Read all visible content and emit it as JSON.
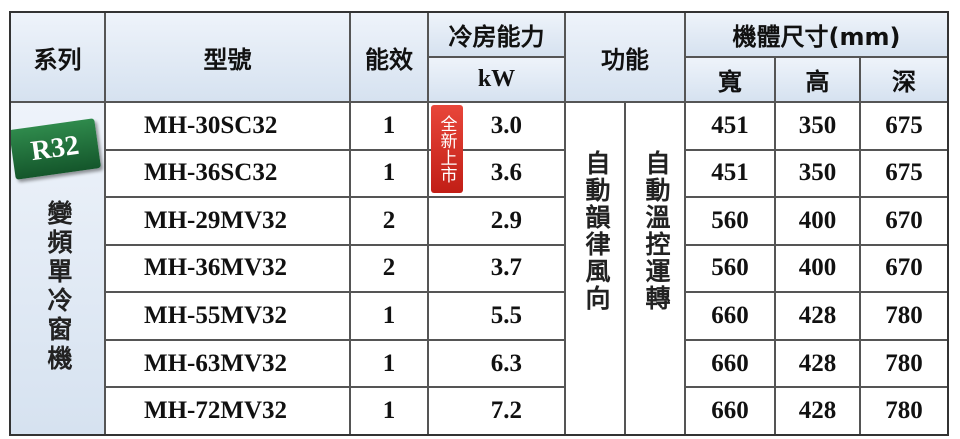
{
  "header": {
    "series": "系列",
    "model": "型號",
    "efficiency": "能效",
    "cooling": "冷房能力",
    "cooling_unit": "kW",
    "function": "功能",
    "size": "機體尺寸(mm)",
    "width": "寬",
    "height": "高",
    "depth": "深"
  },
  "series_cell": {
    "badge": "R32",
    "name": "變頻單冷窗機"
  },
  "new_badge": "全新上市",
  "functions": [
    "自動韻律風向",
    "自動溫控運轉"
  ],
  "table": {
    "rows": [
      [
        "MH-30SC32",
        "1",
        "3.0",
        "451",
        "350",
        "675"
      ],
      [
        "MH-36SC32",
        "1",
        "3.6",
        "451",
        "350",
        "675"
      ],
      [
        "MH-29MV32",
        "2",
        "2.9",
        "560",
        "400",
        "670"
      ],
      [
        "MH-36MV32",
        "2",
        "3.7",
        "560",
        "400",
        "670"
      ],
      [
        "MH-55MV32",
        "1",
        "5.5",
        "660",
        "428",
        "780"
      ],
      [
        "MH-63MV32",
        "1",
        "6.3",
        "660",
        "428",
        "780"
      ],
      [
        "MH-72MV32",
        "1",
        "7.2",
        "660",
        "428",
        "780"
      ]
    ]
  }
}
